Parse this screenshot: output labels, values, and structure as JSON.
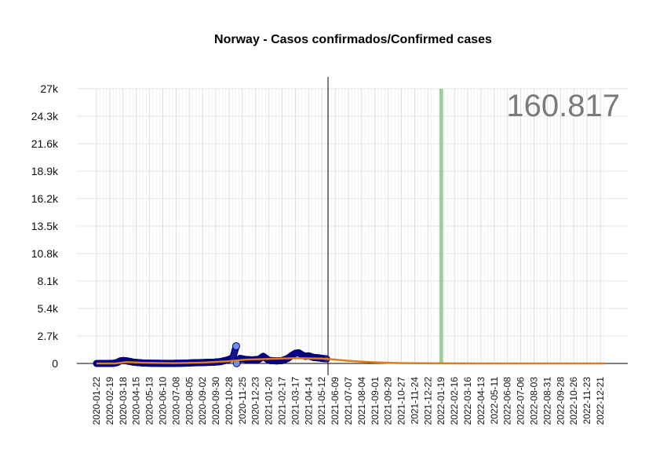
{
  "chart_data": {
    "type": "scatter",
    "title": "Norway - Casos confirmados/Confirmed cases",
    "total_label": "160.817",
    "ylim": [
      0,
      27000
    ],
    "y_ticks": [
      "0",
      "2.7k",
      "5.4k",
      "8.1k",
      "10.8k",
      "13.5k",
      "16.2k",
      "18.9k",
      "21.6k",
      "24.3k",
      "27k"
    ],
    "y_tick_values": [
      0,
      2700,
      5400,
      8100,
      10800,
      13500,
      16200,
      18900,
      21600,
      24300,
      27000
    ],
    "x_range": [
      "2020-01-22",
      "2022-12-31"
    ],
    "x_ticks": [
      "2020-01-22",
      "2020-02-19",
      "2020-03-18",
      "2020-04-15",
      "2020-05-13",
      "2020-06-10",
      "2020-07-08",
      "2020-08-05",
      "2020-09-02",
      "2020-09-30",
      "2020-10-28",
      "2020-11-25",
      "2020-12-23",
      "2021-01-20",
      "2021-02-17",
      "2021-03-17",
      "2021-04-14",
      "2021-05-12",
      "2021-06-09",
      "2021-07-07",
      "2021-08-04",
      "2021-09-01",
      "2021-09-29",
      "2021-10-27",
      "2021-11-24",
      "2021-12-22",
      "2022-01-19",
      "2022-02-16",
      "2022-03-16",
      "2022-04-13",
      "2022-05-11",
      "2022-06-08",
      "2022-07-06",
      "2022-08-03",
      "2022-08-31",
      "2022-09-28",
      "2022-10-26",
      "2022-11-23",
      "2022-12-21"
    ],
    "vertical_line_date": "2021-05-25",
    "highlight_band": [
      "2022-01-15",
      "2022-01-21"
    ],
    "daily_cases": [
      [
        "2020-01-22",
        0
      ],
      [
        "2020-02-10",
        0
      ],
      [
        "2020-02-26",
        10
      ],
      [
        "2020-03-05",
        80
      ],
      [
        "2020-03-12",
        250
      ],
      [
        "2020-03-18",
        290
      ],
      [
        "2020-03-25",
        260
      ],
      [
        "2020-04-01",
        200
      ],
      [
        "2020-04-10",
        120
      ],
      [
        "2020-04-20",
        80
      ],
      [
        "2020-05-01",
        40
      ],
      [
        "2020-05-15",
        20
      ],
      [
        "2020-06-01",
        15
      ],
      [
        "2020-06-20",
        12
      ],
      [
        "2020-07-08",
        15
      ],
      [
        "2020-07-25",
        25
      ],
      [
        "2020-08-10",
        60
      ],
      [
        "2020-08-25",
        80
      ],
      [
        "2020-09-10",
        100
      ],
      [
        "2020-09-25",
        120
      ],
      [
        "2020-10-10",
        180
      ],
      [
        "2020-10-25",
        350
      ],
      [
        "2020-11-05",
        550
      ],
      [
        "2020-11-12",
        1700
      ],
      [
        "2020-11-13",
        20
      ],
      [
        "2020-11-20",
        500
      ],
      [
        "2020-12-01",
        400
      ],
      [
        "2020-12-15",
        350
      ],
      [
        "2020-12-30",
        400
      ],
      [
        "2021-01-08",
        700
      ],
      [
        "2021-01-20",
        300
      ],
      [
        "2021-02-05",
        250
      ],
      [
        "2021-02-17",
        280
      ],
      [
        "2021-03-01",
        500
      ],
      [
        "2021-03-10",
        800
      ],
      [
        "2021-03-17",
        1000
      ],
      [
        "2021-03-24",
        1050
      ],
      [
        "2021-03-31",
        850
      ],
      [
        "2021-04-07",
        700
      ],
      [
        "2021-04-14",
        750
      ],
      [
        "2021-04-24",
        600
      ],
      [
        "2021-05-05",
        550
      ],
      [
        "2021-05-12",
        500
      ],
      [
        "2021-05-22",
        450
      ]
    ],
    "trend": [
      [
        "2020-01-22",
        0
      ],
      [
        "2020-03-01",
        0
      ],
      [
        "2020-03-25",
        130
      ],
      [
        "2020-05-01",
        70
      ],
      [
        "2020-07-01",
        30
      ],
      [
        "2020-09-01",
        80
      ],
      [
        "2020-10-28",
        220
      ],
      [
        "2020-12-01",
        380
      ],
      [
        "2021-01-20",
        450
      ],
      [
        "2021-03-17",
        520
      ],
      [
        "2021-05-12",
        480
      ],
      [
        "2021-06-09",
        380
      ],
      [
        "2021-07-07",
        260
      ],
      [
        "2021-08-04",
        170
      ],
      [
        "2021-09-01",
        110
      ],
      [
        "2021-10-01",
        60
      ],
      [
        "2021-11-01",
        30
      ],
      [
        "2021-12-01",
        15
      ],
      [
        "2022-01-19",
        8
      ],
      [
        "2022-04-01",
        3
      ],
      [
        "2022-08-01",
        1
      ],
      [
        "2022-12-31",
        0
      ]
    ],
    "colors": {
      "points_fill": "#2b2b8f",
      "points_highlight": "#6f8fe8",
      "points_stroke": "#000080",
      "trend": "#e07b1a",
      "band": "#8cc48c",
      "grid": "#e5e5e5"
    }
  }
}
